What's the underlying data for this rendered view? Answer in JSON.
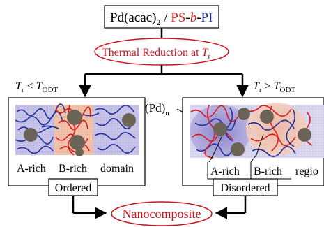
{
  "title_box": {
    "pd_part": "Pd(acac)",
    "pd_sub": "2",
    "sep": " / ",
    "ps": "PS",
    "dash1": "-",
    "b": "b",
    "dash2": "-",
    "pi": "PI"
  },
  "reduction": {
    "text": "Thermal Reduction at ",
    "T": "T",
    "sub": "r"
  },
  "left_condition": {
    "T": "T",
    "r": "r",
    "op": " < ",
    "T2": "T",
    "odt": "ODT"
  },
  "right_condition": {
    "T": "T",
    "r": "r",
    "op": " > ",
    "T2": "T",
    "odt": "ODT"
  },
  "pd_label": {
    "main": "(Pd)",
    "sub": "n"
  },
  "left_panel": {
    "a_rich": "A-rich",
    "b_rich": "B-rich",
    "domain": "domain",
    "state": "Ordered"
  },
  "right_panel": {
    "a_rich": "A-rich",
    "b_rich": "B-rich",
    "region": "regio",
    "state": "Disordered"
  },
  "result": "Nanocomposite",
  "colors": {
    "ps_red": "#d81b1b",
    "pi_blue": "#1f2f9e",
    "text_red": "#c8141e",
    "a_rich_fill": "#c9c5e8",
    "b_rich_fill": "#f2c4ad",
    "particle": "#6b6456"
  }
}
